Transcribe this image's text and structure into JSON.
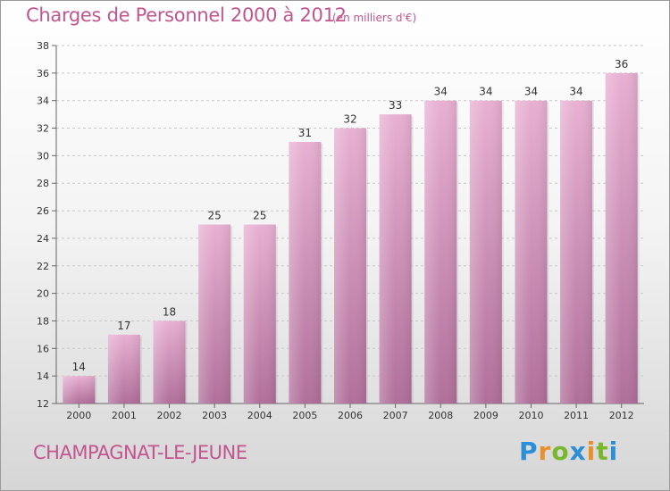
{
  "header": {
    "title": "Charges de Personnel 2000 à 2012",
    "subtitle": "(en milliers d'€)"
  },
  "footer": {
    "commune": "CHAMPAGNAT-LE-JEUNE",
    "logo_letters": [
      "P",
      "r",
      "o",
      "x",
      "i",
      "t",
      "i"
    ],
    "logo_colors": [
      "#2a8fd6",
      "#e8912a",
      "#79b72e",
      "#2a8fd6",
      "#e8912a",
      "#79b72e",
      "#2a8fd6"
    ]
  },
  "colors": {
    "bar_light": "#e8b0d2",
    "bar_dark": "#b06f9a",
    "text_accent": "#c2558f"
  },
  "chart_data": {
    "type": "bar",
    "categories": [
      "2000",
      "2001",
      "2002",
      "2003",
      "2004",
      "2005",
      "2006",
      "2007",
      "2008",
      "2009",
      "2010",
      "2011",
      "2012"
    ],
    "values": [
      14,
      17,
      18,
      25,
      25,
      31,
      32,
      33,
      34,
      34,
      34,
      34,
      36
    ],
    "ylim": [
      12,
      38
    ],
    "yticks": [
      12,
      14,
      16,
      18,
      20,
      22,
      24,
      26,
      28,
      30,
      32,
      34,
      36,
      38
    ],
    "grid": true
  }
}
